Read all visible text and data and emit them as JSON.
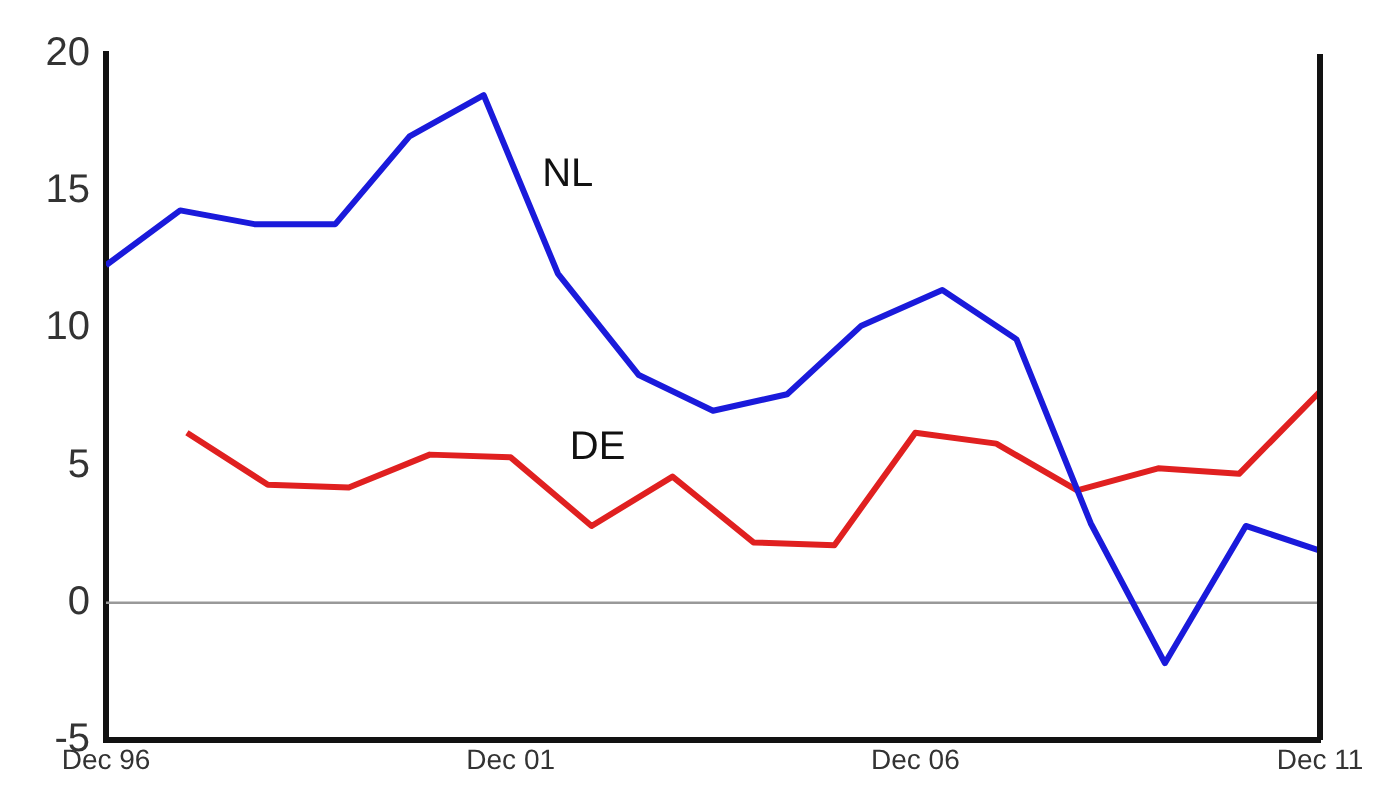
{
  "chart_data": {
    "type": "line",
    "xlim": [
      "1996-12",
      "2011-12"
    ],
    "xticks": [
      {
        "value": "1996-12",
        "label": "Dec 96"
      },
      {
        "value": "2001-12",
        "label": "Dec 01"
      },
      {
        "value": "2006-12",
        "label": "Dec 06"
      },
      {
        "value": "2011-12",
        "label": "Dec 11"
      }
    ],
    "ylim": [
      -5,
      20
    ],
    "yticks": [
      -5,
      0,
      5,
      10,
      15,
      20
    ],
    "grid": false,
    "legend": false,
    "marker": "none",
    "line_style": "solid",
    "ref_lines": [
      {
        "axis": "y",
        "value": 0,
        "color": "#999999"
      }
    ],
    "series": [
      {
        "name": "NL",
        "color": "#1a1adb",
        "x": [
          "1996-12",
          "1997-11",
          "1998-10",
          "1999-10",
          "2000-09",
          "2001-08",
          "2002-07",
          "2003-07",
          "2004-06",
          "2005-05",
          "2006-04",
          "2007-04",
          "2008-03",
          "2009-02",
          "2010-01",
          "2011-01",
          "2011-12"
        ],
        "values": [
          12.3,
          14.3,
          13.8,
          13.8,
          17.0,
          18.5,
          12.0,
          8.3,
          7.0,
          7.6,
          10.1,
          11.4,
          9.6,
          2.9,
          -2.2,
          2.8,
          1.9
        ]
      },
      {
        "name": "DE",
        "color": "#e02020",
        "x": [
          "1997-12",
          "1998-12",
          "1999-12",
          "2000-12",
          "2001-12",
          "2002-12",
          "2003-12",
          "2004-12",
          "2005-12",
          "2006-12",
          "2007-12",
          "2008-12",
          "2009-12",
          "2010-12",
          "2011-12"
        ],
        "values": [
          6.2,
          4.3,
          4.2,
          5.4,
          5.3,
          2.8,
          4.6,
          2.2,
          2.1,
          6.2,
          5.8,
          4.1,
          4.9,
          4.7,
          7.7
        ]
      }
    ]
  }
}
